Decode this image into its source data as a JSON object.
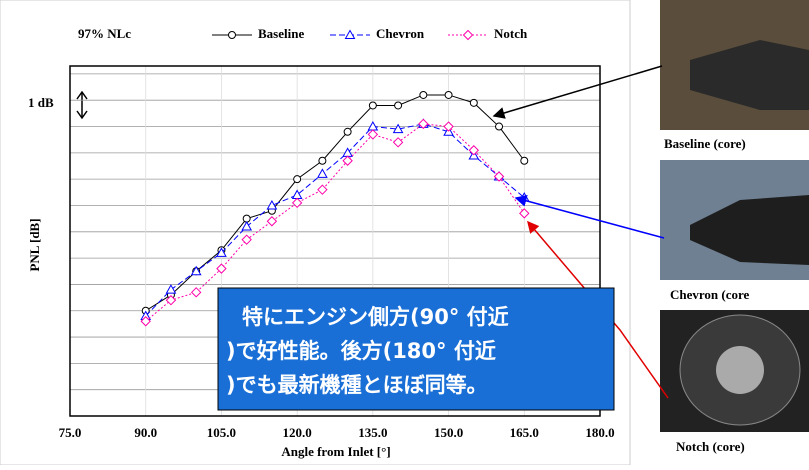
{
  "chart_data": {
    "type": "line",
    "title": "97% NLc",
    "x_label": "Angle from Inlet [°]",
    "y_label": "PNL [dB]",
    "scale_label": "1 dB",
    "x": [
      90,
      95,
      100,
      105,
      110,
      115,
      120,
      125,
      130,
      135,
      140,
      145,
      150,
      155,
      160,
      165
    ],
    "series": [
      {
        "name": "Baseline",
        "color": "#000000",
        "marker": "circle",
        "line_style": "solid",
        "values": [
          4.0,
          4.6,
          5.5,
          6.3,
          7.5,
          7.8,
          9.0,
          9.7,
          10.8,
          11.8,
          11.8,
          12.2,
          12.2,
          11.9,
          11.0,
          9.7
        ]
      },
      {
        "name": "Chevron",
        "color": "#0000ff",
        "marker": "triangle",
        "line_style": "dashed",
        "values": [
          3.8,
          4.8,
          5.5,
          6.2,
          7.2,
          8.0,
          8.4,
          9.2,
          10.0,
          11.0,
          10.9,
          11.1,
          10.8,
          9.9,
          9.1,
          8.3
        ]
      },
      {
        "name": "Notch",
        "color": "#ff00aa",
        "marker": "diamond",
        "line_style": "dotted",
        "values": [
          3.6,
          4.4,
          4.7,
          5.6,
          6.7,
          7.4,
          8.1,
          8.6,
          9.7,
          10.7,
          10.4,
          11.1,
          11.0,
          10.1,
          9.1,
          7.7
        ]
      }
    ],
    "xlim": [
      75,
      180
    ],
    "xticks": [
      {
        "value": 75,
        "label": "75.0"
      },
      {
        "value": 90,
        "label": "90.0"
      },
      {
        "value": 105,
        "label": "105.0"
      },
      {
        "value": 120,
        "label": "120.0"
      },
      {
        "value": 135,
        "label": "135.0"
      },
      {
        "value": 150,
        "label": "150.0"
      },
      {
        "value": 165,
        "label": "165.0"
      },
      {
        "value": 180,
        "label": "180.0"
      }
    ],
    "ylim": [
      0,
      13.3
    ],
    "yticks": [
      1,
      2,
      3,
      4,
      5,
      6,
      7,
      8,
      9,
      10,
      11,
      12,
      13
    ],
    "grid": true
  },
  "annotation": [
    "特にエンジン側方(90° 付近",
    ")で好性能。後方(180° 付近",
    ")でも最新機種とほぼ同等。"
  ],
  "photos": [
    {
      "caption": "Baseline (core)"
    },
    {
      "caption": "Chevron (core"
    },
    {
      "caption": "Notch (core)"
    }
  ]
}
